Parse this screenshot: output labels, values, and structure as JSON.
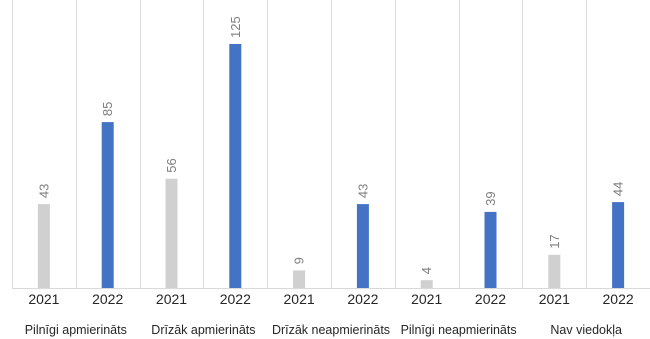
{
  "chart_data": {
    "type": "bar",
    "categories": [
      "Pilnīgi apmierināts",
      "Drīzāk apmierināts",
      "Drīzāk neapmierināts",
      "Pilnīgi neapmierināts",
      "Nav viedokļa"
    ],
    "x_sublabels": [
      "2021",
      "2022"
    ],
    "series": [
      {
        "values": [
          43,
          56,
          9,
          4,
          17
        ],
        "color": "#d0d0d0"
      },
      {
        "values": [
          85,
          125,
          43,
          39,
          44
        ],
        "color": "#4472c4"
      }
    ],
    "ylim": [
      0,
      125
    ],
    "grid": "vertical",
    "legend": "none"
  }
}
